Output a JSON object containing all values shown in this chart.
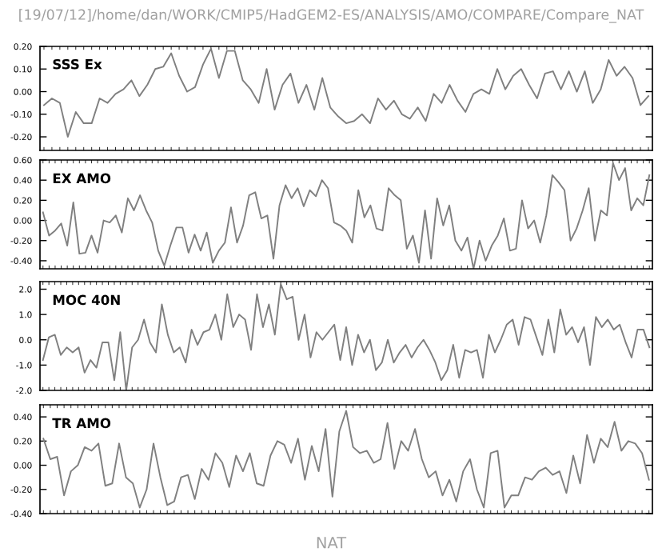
{
  "chart_data": [
    {
      "type": "line",
      "title": "[19/07/12]/home/dan/WORK/CMIP5/HadGEM2-ES/ANALYSIS/AMO/COMPARE/Compare_NAT",
      "annotations": [
        "SSS Ex"
      ],
      "tick_labels": "y",
      "ylim": [
        -0.26,
        0.2
      ],
      "yticks": [
        {
          "value": 0.2,
          "label": "0.20"
        },
        {
          "value": 0.1,
          "label": "0.10"
        },
        {
          "value": 0.0,
          "label": "0.00"
        },
        {
          "value": -0.1,
          "label": "-0.10"
        },
        {
          "value": -0.2,
          "label": "-0.20"
        }
      ],
      "categories": [
        null,
        null,
        null,
        null,
        null,
        null,
        null,
        null,
        null,
        null,
        null,
        null,
        null,
        null,
        null,
        null,
        null,
        null,
        null,
        null,
        null,
        null,
        null,
        null,
        null,
        null,
        null,
        null,
        null,
        null,
        null,
        null,
        null,
        null,
        null,
        null,
        null,
        null,
        null,
        null,
        null,
        null,
        null,
        null,
        null,
        null,
        null,
        null,
        null,
        null,
        null,
        null,
        null,
        null,
        null,
        null,
        null,
        null,
        null,
        null,
        null,
        null,
        null,
        null,
        null,
        null,
        null,
        null,
        null,
        null,
        null,
        null,
        null,
        null,
        null,
        null,
        null
      ],
      "series": [
        {
          "color": "#808080",
          "values": [
            -0.06,
            -0.03,
            -0.05,
            -0.2,
            -0.09,
            -0.14,
            -0.14,
            -0.03,
            -0.05,
            -0.01,
            0.01,
            0.05,
            -0.02,
            0.03,
            0.1,
            0.11,
            0.17,
            0.07,
            0.0,
            0.02,
            0.12,
            0.19,
            0.06,
            0.18,
            0.18,
            0.05,
            0.01,
            -0.05,
            0.1,
            -0.08,
            0.03,
            0.08,
            -0.05,
            0.03,
            -0.08,
            0.06,
            -0.07,
            -0.11,
            -0.14,
            -0.13,
            -0.1,
            -0.14,
            -0.03,
            -0.08,
            -0.04,
            -0.1,
            -0.12,
            -0.07,
            -0.13,
            -0.01,
            -0.05,
            0.03,
            -0.04,
            -0.09,
            -0.01,
            0.01,
            -0.01,
            0.1,
            0.01,
            0.07,
            0.1,
            0.03,
            -0.03,
            0.08,
            0.09,
            0.01,
            0.09,
            0.0,
            0.09,
            -0.05,
            0.01,
            0.14,
            0.07,
            0.11,
            0.06,
            -0.06,
            -0.02
          ]
        }
      ]
    },
    {
      "type": "line",
      "annotations": [
        "EX AMO"
      ],
      "tick_labels": "y",
      "ylim": [
        -0.48,
        0.6
      ],
      "yticks": [
        {
          "value": 0.6,
          "label": "0.60"
        },
        {
          "value": 0.4,
          "label": "0.40"
        },
        {
          "value": 0.2,
          "label": "0.20"
        },
        {
          "value": 0.0,
          "label": "0.00"
        },
        {
          "value": -0.2,
          "label": "-0.20"
        },
        {
          "value": -0.4,
          "label": "-0.40"
        }
      ],
      "categories": [
        null,
        null,
        null,
        null,
        null,
        null,
        null,
        null,
        null,
        null,
        null,
        null,
        null,
        null,
        null,
        null,
        null,
        null,
        null,
        null,
        null,
        null,
        null,
        null,
        null,
        null,
        null,
        null,
        null,
        null,
        null,
        null,
        null,
        null,
        null,
        null,
        null,
        null,
        null,
        null,
        null,
        null,
        null,
        null,
        null,
        null,
        null,
        null,
        null,
        null,
        null,
        null,
        null,
        null,
        null,
        null,
        null,
        null,
        null,
        null,
        null,
        null,
        null,
        null,
        null,
        null,
        null,
        null,
        null,
        null,
        null,
        null,
        null,
        null,
        null,
        null,
        null,
        null,
        null,
        null,
        null,
        null,
        null,
        null,
        null,
        null,
        null,
        null,
        null,
        null,
        null,
        null,
        null,
        null,
        null,
        null,
        null,
        null,
        null,
        null,
        null
      ],
      "series": [
        {
          "color": "#808080",
          "values": [
            0.08,
            -0.15,
            -0.1,
            -0.03,
            -0.25,
            0.18,
            -0.33,
            -0.32,
            -0.15,
            -0.32,
            0.0,
            -0.02,
            0.05,
            -0.12,
            0.22,
            0.1,
            0.25,
            0.1,
            -0.02,
            -0.3,
            -0.45,
            -0.25,
            -0.07,
            -0.07,
            -0.32,
            -0.14,
            -0.3,
            -0.12,
            -0.42,
            -0.3,
            -0.22,
            0.13,
            -0.22,
            -0.05,
            0.25,
            0.28,
            0.02,
            0.05,
            -0.38,
            0.15,
            0.35,
            0.22,
            0.32,
            0.14,
            0.3,
            0.24,
            0.4,
            0.32,
            -0.02,
            -0.05,
            -0.1,
            -0.22,
            0.3,
            0.03,
            0.15,
            -0.08,
            -0.1,
            0.32,
            0.25,
            0.2,
            -0.28,
            -0.15,
            -0.42,
            0.1,
            -0.38,
            0.22,
            -0.05,
            0.15,
            -0.2,
            -0.3,
            -0.17,
            -0.48,
            -0.2,
            -0.4,
            -0.25,
            -0.15,
            0.02,
            -0.3,
            -0.28,
            0.2,
            -0.08,
            0.0,
            -0.22,
            0.05,
            0.45,
            0.38,
            0.3,
            -0.2,
            -0.08,
            0.1,
            0.32,
            -0.2,
            0.1,
            0.05,
            0.57,
            0.4,
            0.52,
            0.1,
            0.22,
            0.15,
            0.45
          ]
        }
      ]
    },
    {
      "type": "line",
      "annotations": [
        "MOC 40N"
      ],
      "tick_labels": "y",
      "ylim": [
        -2.0,
        2.3
      ],
      "yticks": [
        {
          "value": 2.0,
          "label": "2.0"
        },
        {
          "value": 1.0,
          "label": "1.0"
        },
        {
          "value": 0.0,
          "label": "0.0"
        },
        {
          "value": -1.0,
          "label": "-1.0"
        },
        {
          "value": -2.0,
          "label": "-2.0"
        }
      ],
      "categories": [
        null,
        null,
        null,
        null,
        null,
        null,
        null,
        null,
        null,
        null,
        null,
        null,
        null,
        null,
        null,
        null,
        null,
        null,
        null,
        null,
        null,
        null,
        null,
        null,
        null,
        null,
        null,
        null,
        null,
        null,
        null,
        null,
        null,
        null,
        null,
        null,
        null,
        null,
        null,
        null,
        null,
        null,
        null,
        null,
        null,
        null,
        null,
        null,
        null,
        null,
        null,
        null,
        null,
        null,
        null,
        null,
        null,
        null,
        null,
        null,
        null,
        null,
        null,
        null,
        null,
        null,
        null,
        null,
        null,
        null,
        null,
        null,
        null,
        null,
        null,
        null,
        null,
        null,
        null,
        null,
        null,
        null,
        null,
        null,
        null,
        null,
        null,
        null,
        null,
        null,
        null,
        null,
        null,
        null,
        null,
        null,
        null,
        null,
        null,
        null,
        null,
        null,
        null
      ],
      "series": [
        {
          "color": "#808080",
          "values": [
            -0.8,
            0.1,
            0.2,
            -0.6,
            -0.3,
            -0.5,
            -0.3,
            -1.3,
            -0.8,
            -1.1,
            -0.1,
            -0.1,
            -1.6,
            0.3,
            -2.0,
            -0.3,
            0.0,
            0.8,
            -0.1,
            -0.5,
            1.4,
            0.2,
            -0.5,
            -0.3,
            -0.9,
            0.4,
            -0.2,
            0.3,
            0.4,
            1.0,
            0.0,
            1.8,
            0.5,
            1.0,
            0.8,
            -0.4,
            1.8,
            0.5,
            1.4,
            0.2,
            2.2,
            1.6,
            1.7,
            0.0,
            1.0,
            -0.7,
            0.3,
            0.0,
            0.3,
            0.6,
            -0.8,
            0.5,
            -1.0,
            0.2,
            -0.5,
            0.0,
            -1.2,
            -0.9,
            0.0,
            -0.9,
            -0.5,
            -0.2,
            -0.7,
            -0.3,
            0.0,
            -0.4,
            -0.9,
            -1.6,
            -1.2,
            -0.2,
            -1.5,
            -0.4,
            -0.5,
            -0.4,
            -1.5,
            0.2,
            -0.5,
            0.0,
            0.6,
            0.8,
            -0.2,
            0.9,
            0.8,
            0.1,
            -0.6,
            0.8,
            -0.5,
            1.2,
            0.2,
            0.5,
            -0.1,
            0.5,
            -1.0,
            0.9,
            0.5,
            0.8,
            0.4,
            0.6,
            -0.1,
            -0.7,
            0.4,
            0.4,
            -0.3
          ]
        }
      ]
    },
    {
      "type": "line",
      "annotations": [
        "TR AMO"
      ],
      "xlabel": "NAT",
      "tick_labels": "y",
      "ylim": [
        -0.4,
        0.5
      ],
      "yticks": [
        {
          "value": 0.4,
          "label": "0.40"
        },
        {
          "value": 0.2,
          "label": "0.20"
        },
        {
          "value": 0.0,
          "label": "0.00"
        },
        {
          "value": -0.2,
          "label": "-0.20"
        },
        {
          "value": -0.4,
          "label": "-0.40"
        }
      ],
      "categories": [
        null,
        null,
        null,
        null,
        null,
        null,
        null,
        null,
        null,
        null,
        null,
        null,
        null,
        null,
        null,
        null,
        null,
        null,
        null,
        null,
        null,
        null,
        null,
        null,
        null,
        null,
        null,
        null,
        null,
        null,
        null,
        null,
        null,
        null,
        null,
        null,
        null,
        null,
        null,
        null,
        null,
        null,
        null,
        null,
        null,
        null,
        null,
        null,
        null,
        null,
        null,
        null,
        null,
        null,
        null,
        null,
        null,
        null,
        null,
        null,
        null,
        null,
        null,
        null,
        null,
        null,
        null,
        null,
        null,
        null,
        null,
        null,
        null,
        null,
        null,
        null,
        null,
        null,
        null,
        null,
        null,
        null,
        null,
        null,
        null,
        null,
        null,
        null,
        null
      ],
      "series": [
        {
          "color": "#808080",
          "values": [
            0.22,
            0.05,
            0.07,
            -0.25,
            -0.05,
            0.0,
            0.15,
            0.12,
            0.18,
            -0.17,
            -0.15,
            0.18,
            -0.1,
            -0.15,
            -0.35,
            -0.2,
            0.18,
            -0.1,
            -0.33,
            -0.3,
            -0.1,
            -0.08,
            -0.28,
            -0.03,
            -0.12,
            0.1,
            0.02,
            -0.18,
            0.08,
            -0.05,
            0.1,
            -0.15,
            -0.17,
            0.08,
            0.2,
            0.17,
            0.02,
            0.22,
            -0.12,
            0.16,
            -0.05,
            0.3,
            -0.26,
            0.28,
            0.45,
            0.15,
            0.1,
            0.12,
            0.02,
            0.05,
            0.35,
            -0.03,
            0.2,
            0.12,
            0.3,
            0.05,
            -0.1,
            -0.05,
            -0.25,
            -0.12,
            -0.3,
            -0.05,
            0.05,
            -0.2,
            -0.35,
            0.1,
            0.12,
            -0.35,
            -0.25,
            -0.25,
            -0.1,
            -0.12,
            -0.05,
            -0.02,
            -0.08,
            -0.05,
            -0.23,
            0.08,
            -0.15,
            0.25,
            0.02,
            0.22,
            0.15,
            0.36,
            0.12,
            0.2,
            0.18,
            0.1,
            -0.12
          ]
        }
      ]
    }
  ]
}
